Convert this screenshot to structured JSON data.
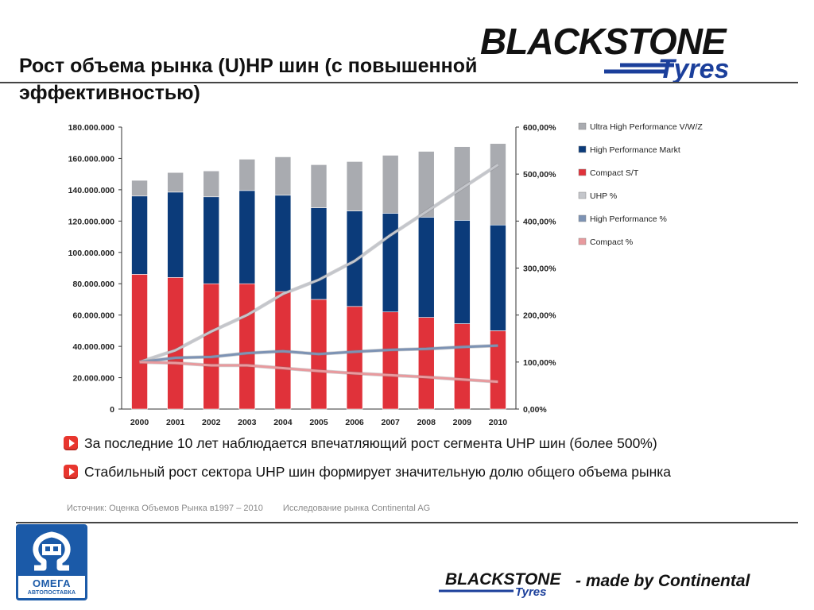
{
  "slide": {
    "title": "Рост объема рынка (U)HP шин (с повышенной эффективностью)",
    "logo": {
      "main": "BLACKSTONE",
      "sub": "Tyres"
    },
    "bullets": [
      "За последние 10 лет наблюдается впечатляющий рост сегмента UHP шин (более 500%)",
      "Стабильный рост сектора UHP шин формирует значительную долю общего объема рынка"
    ],
    "source": [
      "Источник: Оценка Объемов Рынка в1997 – 2010",
      "Исследование рынка Continental AG"
    ],
    "footer": {
      "omega_label": "ОМЕГА",
      "omega_sub": "АВТОПОСТАВКА",
      "logo_main": "BLACKSTONE",
      "logo_sub": "Tyres",
      "tagline": "- made by Continental"
    },
    "colors": {
      "uhp": "#a9abb0",
      "high_performance": "#0b3b7a",
      "compact": "#e0323a",
      "accent": "#1b3f9b",
      "omega_blue": "#1b5aa8"
    }
  },
  "chart_data": {
    "type": "bar",
    "stacked": true,
    "categories": [
      "2000",
      "2001",
      "2002",
      "2003",
      "2004",
      "2005",
      "2006",
      "2007",
      "2008",
      "2009",
      "2010"
    ],
    "series": [
      {
        "name": "Compact S/T",
        "axis": "left",
        "color": "#e0323a",
        "values": [
          86000000,
          84000000,
          80000000,
          80000000,
          75000000,
          70000000,
          65500000,
          62000000,
          58500000,
          54500000,
          50000000
        ]
      },
      {
        "name": "High Performance Markt",
        "axis": "left",
        "color": "#0b3b7a",
        "values": [
          50000000,
          54500000,
          55500000,
          59500000,
          61500000,
          58500000,
          61000000,
          63000000,
          64000000,
          66000000,
          67500000
        ]
      },
      {
        "name": "Ultra High Performance V/W/Z",
        "axis": "left",
        "color": "#a9abb0",
        "values": [
          10000000,
          12500000,
          16500000,
          20000000,
          24500000,
          27500000,
          31500000,
          37000000,
          42000000,
          47000000,
          52000000
        ]
      }
    ],
    "lines": [
      {
        "name": "UHP %",
        "axis": "right",
        "color": "#c4c6cb",
        "values": [
          100,
          125,
          165,
          200,
          245,
          275,
          315,
          370,
          420,
          470,
          520
        ]
      },
      {
        "name": "High Performance %",
        "axis": "right",
        "color": "#7d93b4",
        "values": [
          100,
          109,
          111,
          119,
          123,
          117,
          122,
          126,
          128,
          132,
          135
        ]
      },
      {
        "name": "Compact %",
        "axis": "right",
        "color": "#e89a9e",
        "values": [
          100,
          98,
          93,
          93,
          87,
          81,
          76,
          72,
          68,
          63,
          58
        ]
      }
    ],
    "legend": [
      "Ultra High Performance V/W/Z",
      "High Performance Markt",
      "Compact S/T",
      "UHP %",
      "High Performance %",
      "Compact %"
    ],
    "legend_position": "right",
    "y_left": {
      "ylim": [
        0,
        180000000
      ],
      "ticks": [
        "0",
        "20.000.000",
        "40.000.000",
        "60.000.000",
        "80.000.000",
        "100.000.000",
        "120.000.000",
        "140.000.000",
        "160.000.000",
        "180.000.000"
      ]
    },
    "y_right": {
      "ylim": [
        0,
        600
      ],
      "ticks": [
        "0,00%",
        "100,00%",
        "200,00%",
        "300,00%",
        "400,00%",
        "500,00%",
        "600,00%"
      ]
    },
    "grid": false
  }
}
